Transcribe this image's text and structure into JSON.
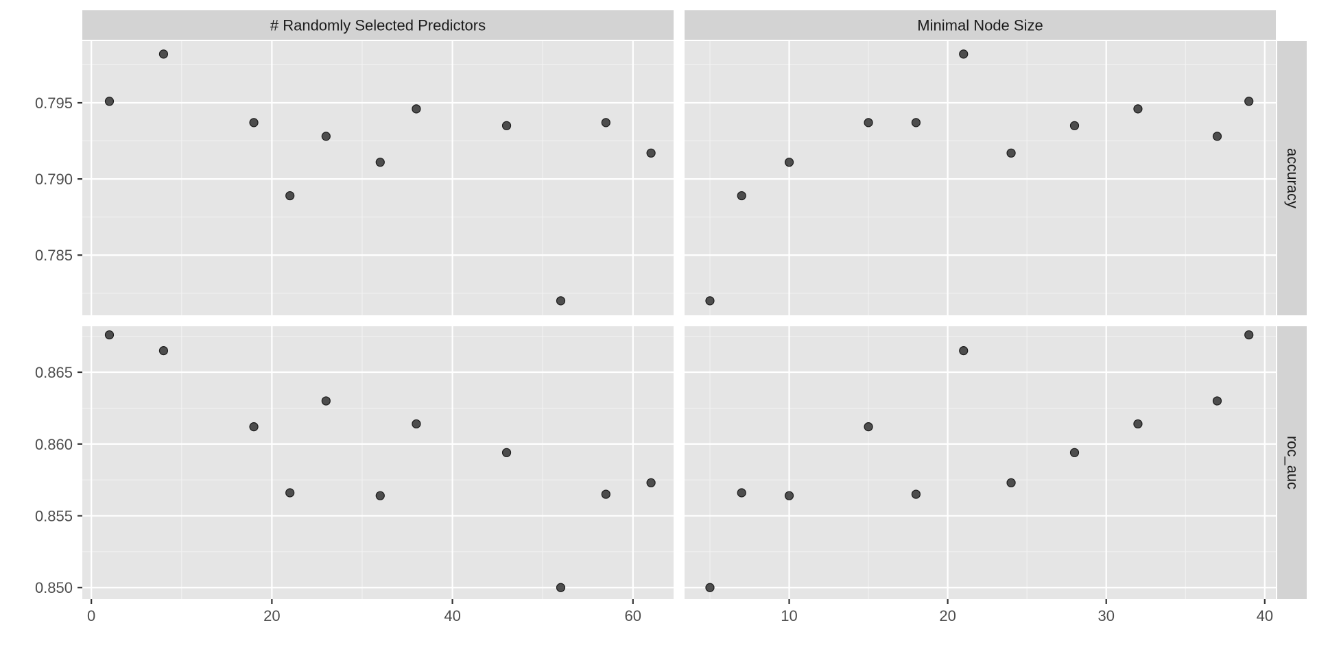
{
  "chart_data": {
    "type": "scatter",
    "facet_columns": [
      {
        "label": "# Randomly Selected Predictors",
        "xlim": [
          -1,
          64.5
        ],
        "x_ticks": [
          0,
          20,
          40,
          60
        ],
        "x_minor": [
          10,
          30,
          50
        ]
      },
      {
        "label": "Minimal Node Size",
        "xlim": [
          3.4,
          40.7
        ],
        "x_ticks": [
          10,
          20,
          30,
          40
        ],
        "x_minor": [
          5,
          15,
          25,
          35
        ]
      }
    ],
    "facet_rows": [
      {
        "label": "accuracy",
        "ylim": [
          0.78105,
          0.79905
        ],
        "y_ticks": [
          0.785,
          0.79,
          0.795
        ],
        "y_tick_labels": [
          "0.785",
          "0.790",
          "0.795"
        ],
        "y_minor": [
          0.7825,
          0.7875,
          0.7925,
          0.7975
        ]
      },
      {
        "label": "roc_auc",
        "ylim": [
          0.8492,
          0.8682
        ],
        "y_ticks": [
          0.85,
          0.855,
          0.86,
          0.865
        ],
        "y_tick_labels": [
          "0.850",
          "0.855",
          "0.860",
          "0.865"
        ],
        "y_minor": [
          0.8525,
          0.8575,
          0.8625,
          0.8675
        ]
      }
    ],
    "series": [
      {
        "mtry": [
          2,
          8,
          18,
          22,
          26,
          32,
          36,
          46,
          52,
          57,
          62
        ],
        "min_n": [
          39,
          21,
          15,
          7,
          37,
          10,
          32,
          28,
          5,
          18,
          24
        ],
        "accuracy": [
          0.7951,
          0.7982,
          0.7937,
          0.7889,
          0.7928,
          0.7911,
          0.7946,
          0.7935,
          0.782,
          0.7937,
          0.7917
        ],
        "roc_auc": [
          0.8676,
          0.8665,
          0.8612,
          0.8566,
          0.863,
          0.8564,
          0.8614,
          0.8594,
          0.85,
          0.8565,
          0.8573
        ]
      }
    ],
    "grid": true,
    "legend": "none"
  }
}
